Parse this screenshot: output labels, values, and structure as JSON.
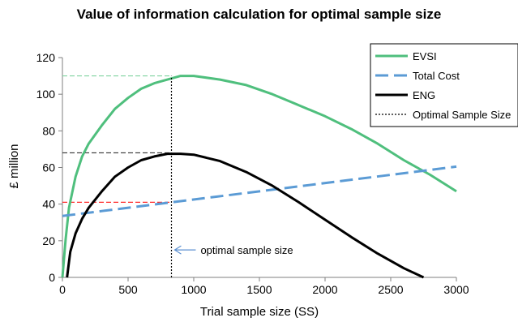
{
  "chart_data": {
    "type": "line",
    "title": "Value of information calculation for optimal sample size",
    "xlabel": "Trial sample size (SS)",
    "ylabel": "£ million",
    "xlim": [
      0,
      3000
    ],
    "ylim": [
      0,
      120
    ],
    "xticks": [
      0,
      500,
      1000,
      1500,
      2000,
      2500,
      3000
    ],
    "yticks": [
      0,
      20,
      40,
      60,
      80,
      100,
      120
    ],
    "grid": false,
    "legend_position": "top-right",
    "series": [
      {
        "name": "EVSI",
        "color": "#4fbf7d",
        "style": "solid",
        "x": [
          0,
          25,
          50,
          100,
          150,
          200,
          300,
          400,
          500,
          600,
          700,
          800,
          900,
          1000,
          1200,
          1400,
          1600,
          1800,
          2000,
          2200,
          2400,
          2600,
          2800,
          3000
        ],
        "y": [
          0,
          21,
          38,
          55,
          66,
          73,
          83,
          92,
          98,
          103,
          106,
          108,
          110,
          110,
          108,
          105,
          100,
          94,
          88,
          81,
          73,
          64,
          56,
          47
        ]
      },
      {
        "name": "Total Cost",
        "color": "#5b9bd5",
        "style": "dashed",
        "x": [
          0,
          3000
        ],
        "y": [
          33.5,
          60.5
        ]
      },
      {
        "name": "ENG",
        "color": "#000000",
        "style": "solid",
        "x": [
          35,
          60,
          100,
          150,
          200,
          300,
          400,
          500,
          600,
          700,
          800,
          900,
          1000,
          1200,
          1400,
          1600,
          1800,
          2000,
          2200,
          2400,
          2600,
          2750
        ],
        "y": [
          0,
          14,
          24,
          32,
          38,
          47,
          55,
          60,
          64,
          66,
          67.5,
          67.5,
          67,
          63.5,
          57.5,
          50,
          41,
          31.5,
          22,
          13,
          5,
          0
        ]
      },
      {
        "name": "Optimal Sample Size",
        "color": "#000000",
        "style": "dotted",
        "x": [
          830,
          830
        ],
        "y": [
          0,
          110
        ]
      }
    ],
    "reference_lines": [
      {
        "color": "#7fd3a0",
        "x": [
          0,
          830
        ],
        "y": [
          110,
          110
        ]
      },
      {
        "color": "#333333",
        "x": [
          0,
          830
        ],
        "y": [
          68,
          68
        ]
      },
      {
        "color": "#ff2a2a",
        "x": [
          0,
          830
        ],
        "y": [
          41,
          41
        ]
      }
    ],
    "annotations": [
      {
        "text": "optimal sample size",
        "x": 830,
        "y": 15
      }
    ]
  }
}
